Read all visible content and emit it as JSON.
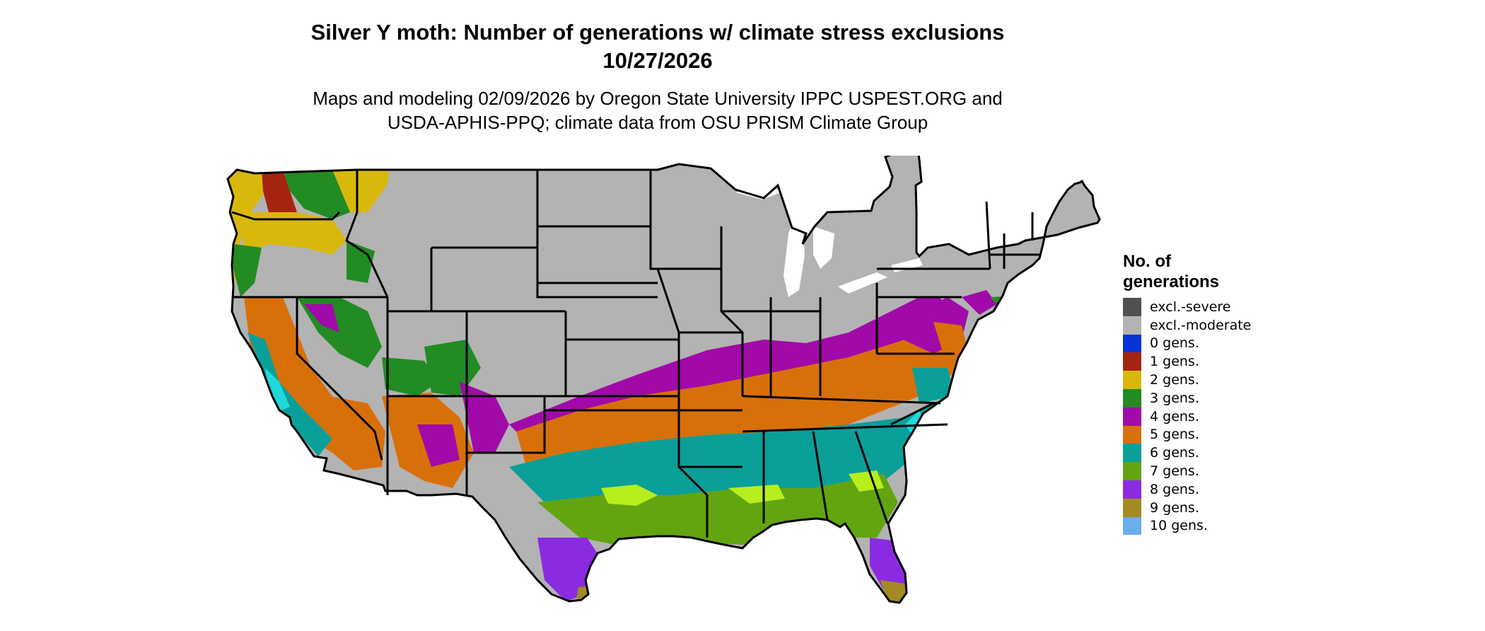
{
  "title": {
    "line1": "Silver Y moth: Number of generations w/ climate stress exclusions",
    "line2": "10/27/2026"
  },
  "subtitle": {
    "line1": "Maps and modeling 02/09/2026 by Oregon State University IPPC USPEST.ORG and",
    "line2": "USDA-APHIS-PPQ; climate data from OSU PRISM Climate Group"
  },
  "legend": {
    "title_line1": "No. of",
    "title_line2": "generations",
    "items": [
      {
        "label": "excl.-severe",
        "color": "#505050"
      },
      {
        "label": "excl.-moderate",
        "color": "#b3b3b3"
      },
      {
        "label": "0 gens.",
        "color": "#0433d6"
      },
      {
        "label": "1 gens.",
        "color": "#a52410"
      },
      {
        "label": "2 gens.",
        "color": "#d9b80c"
      },
      {
        "label": "3 gens.",
        "color": "#228b22"
      },
      {
        "label": "4 gens.",
        "color": "#a10aa8"
      },
      {
        "label": "5 gens.",
        "color": "#d8700a"
      },
      {
        "label": "6 gens.",
        "color": "#0b9f9a"
      },
      {
        "label": "7 gens.",
        "color": "#62a510"
      },
      {
        "label": "8 gens.",
        "color": "#8a2be2"
      },
      {
        "label": "9 gens.",
        "color": "#a38a22"
      },
      {
        "label": "10 gens.",
        "color": "#6aaeeb"
      }
    ]
  },
  "map": {
    "region": "Contiguous United States",
    "colors": {
      "excluded": "#b3b3b3",
      "g2": "#d9b80c",
      "g3": "#228b22",
      "g4": "#a10aa8",
      "g5": "#d8700a",
      "g6": "#0b9f9a",
      "g7": "#62a510",
      "g8": "#8a2be2",
      "g9": "#a38a22",
      "cyan": "#1fd9d9",
      "lime": "#b7ee1e",
      "border": "#000000"
    }
  }
}
